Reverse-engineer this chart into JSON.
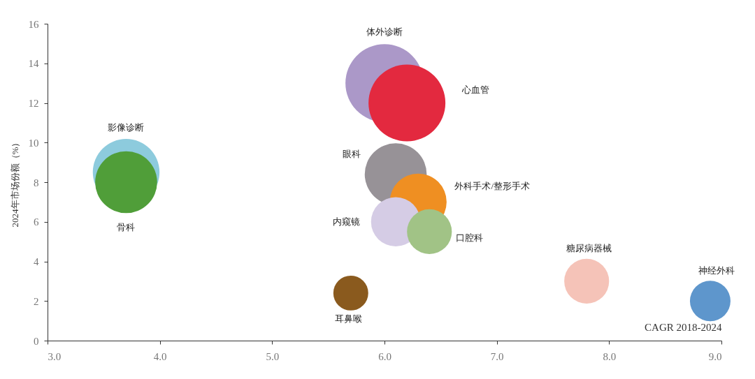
{
  "chart_data": {
    "type": "bubble",
    "xlabel": "CAGR 2018-2024",
    "ylabel": "2024年市场份额（%）",
    "xlim": [
      3.0,
      9.0
    ],
    "xticks": [
      {
        "value": 3,
        "label": "3.0"
      },
      {
        "value": 4,
        "label": "4.0"
      },
      {
        "value": 5,
        "label": "5.0"
      },
      {
        "value": 6,
        "label": "6.0"
      },
      {
        "value": 7,
        "label": "7.0"
      },
      {
        "value": 8,
        "label": "8.0"
      },
      {
        "value": 9,
        "label": "9.0"
      }
    ],
    "ylim": [
      0,
      16
    ],
    "yticks": [
      0,
      2,
      4,
      6,
      8,
      10,
      12,
      14,
      16
    ],
    "grid": false,
    "legend": false,
    "series": [
      {
        "name": "影像诊断",
        "color": "#8dcbdd",
        "x": [
          3.7
        ],
        "values": [
          8.5
        ],
        "sizes": [
          0.73
        ]
      },
      {
        "name": "骨科",
        "color": "#509e39",
        "x": [
          3.7
        ],
        "values": [
          8.0
        ],
        "sizes": [
          0.63
        ]
      },
      {
        "name": "体外诊断",
        "color": "#ab98c8",
        "x": [
          6.0
        ],
        "values": [
          13.0
        ],
        "sizes": [
          1.0
        ]
      },
      {
        "name": "心血管",
        "color": "#e3293f",
        "x": [
          6.2
        ],
        "values": [
          12.0
        ],
        "sizes": [
          0.97
        ]
      },
      {
        "name": "眼科",
        "color": "#979297",
        "x": [
          6.1
        ],
        "values": [
          8.4
        ],
        "sizes": [
          0.63
        ]
      },
      {
        "name": "外科手术/整形手术",
        "color": "#ef8f22",
        "x": [
          6.3
        ],
        "values": [
          7.0
        ],
        "sizes": [
          0.53
        ]
      },
      {
        "name": "内窥镜",
        "color": "#d5cce5",
        "x": [
          6.1
        ],
        "values": [
          6.0
        ],
        "sizes": [
          0.4
        ]
      },
      {
        "name": "口腔科",
        "color": "#a1c386",
        "x": [
          6.4
        ],
        "values": [
          5.5
        ],
        "sizes": [
          0.33
        ]
      },
      {
        "name": "耳鼻喉",
        "color": "#8a5a1e",
        "x": [
          5.7
        ],
        "values": [
          2.4
        ],
        "sizes": [
          0.2
        ]
      },
      {
        "name": "糖尿病器械",
        "color": "#f5c3b8",
        "x": [
          7.8
        ],
        "values": [
          3.0
        ],
        "sizes": [
          0.33
        ]
      },
      {
        "name": "神经外科",
        "color": "#5e96cc",
        "x": [
          8.9
        ],
        "values": [
          2.0
        ],
        "sizes": [
          0.27
        ]
      }
    ]
  }
}
